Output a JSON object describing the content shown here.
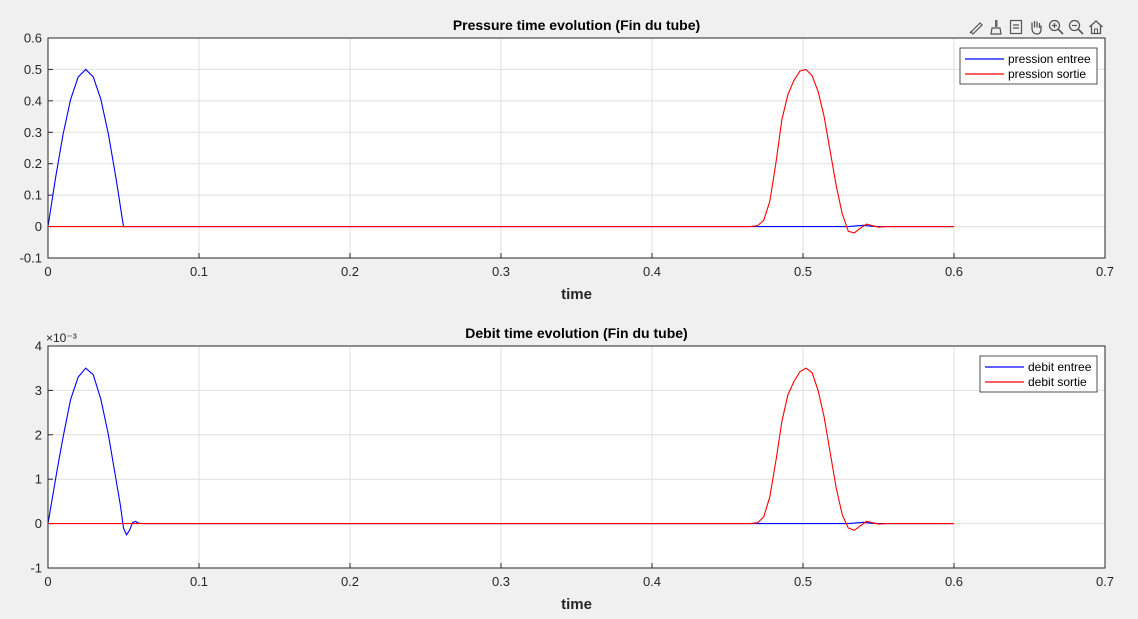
{
  "toolbar": {
    "icons": [
      "data-tips-icon",
      "brush-icon",
      "restore-view-icon",
      "pan-hand-icon",
      "zoom-in-icon",
      "zoom-out-icon",
      "home-icon"
    ]
  },
  "colors": {
    "background": "#f0f0f0",
    "axes_background": "#ffffff",
    "grid": "#dfdfdf",
    "series_inlet": "#0000ff",
    "series_outlet": "#ff0000"
  },
  "chart_data": [
    {
      "type": "line",
      "title": "Pressure time evolution (Fin du tube)",
      "xlabel": "time",
      "ylabel": "",
      "xlim": [
        0,
        0.7
      ],
      "ylim": [
        -0.1,
        0.6
      ],
      "x_ticks": [
        "0",
        "0.1",
        "0.2",
        "0.3",
        "0.4",
        "0.5",
        "0.6",
        "0.7"
      ],
      "y_ticks": [
        "-0.1",
        "0",
        "0.1",
        "0.2",
        "0.3",
        "0.4",
        "0.5",
        "0.6"
      ],
      "exponent_label": "",
      "grid": true,
      "legend_position": "top-right",
      "series": [
        {
          "name": "pression entree",
          "color": "#0000ff",
          "x": [
            0,
            0.005,
            0.01,
            0.015,
            0.02,
            0.025,
            0.03,
            0.035,
            0.04,
            0.045,
            0.05,
            0.0501,
            0.1,
            0.2,
            0.3,
            0.4,
            0.47,
            0.5,
            0.53,
            0.54,
            0.545,
            0.55,
            0.555,
            0.6
          ],
          "y": [
            0,
            0.155,
            0.294,
            0.405,
            0.476,
            0.5,
            0.476,
            0.405,
            0.294,
            0.155,
            0,
            0,
            0,
            0,
            0,
            0,
            0,
            0,
            0,
            0.004,
            0.001,
            0,
            0,
            0
          ]
        },
        {
          "name": "pression sortie",
          "color": "#ff0000",
          "x": [
            0,
            0.1,
            0.2,
            0.3,
            0.4,
            0.465,
            0.47,
            0.474,
            0.478,
            0.482,
            0.486,
            0.49,
            0.494,
            0.498,
            0.502,
            0.506,
            0.51,
            0.514,
            0.518,
            0.522,
            0.526,
            0.53,
            0.534,
            0.538,
            0.542,
            0.546,
            0.55,
            0.555,
            0.6
          ],
          "y": [
            0,
            0,
            0,
            0,
            0,
            0,
            0.003,
            0.02,
            0.08,
            0.2,
            0.34,
            0.42,
            0.465,
            0.495,
            0.5,
            0.48,
            0.43,
            0.35,
            0.24,
            0.13,
            0.04,
            -0.015,
            -0.02,
            -0.005,
            0.008,
            0.003,
            -0.002,
            0,
            0
          ]
        }
      ]
    },
    {
      "type": "line",
      "title": "Debit time evolution (Fin du tube)",
      "xlabel": "time",
      "ylabel": "",
      "xlim": [
        0,
        0.7
      ],
      "ylim": [
        -1,
        4
      ],
      "x_ticks": [
        "0",
        "0.1",
        "0.2",
        "0.3",
        "0.4",
        "0.5",
        "0.6",
        "0.7"
      ],
      "y_ticks": [
        "-1",
        "0",
        "1",
        "2",
        "3",
        "4"
      ],
      "exponent_label": "×10⁻³",
      "grid": true,
      "legend_position": "top-right",
      "series": [
        {
          "name": "debit entree",
          "color": "#0000ff",
          "x": [
            0,
            0.003,
            0.006,
            0.01,
            0.015,
            0.02,
            0.025,
            0.03,
            0.035,
            0.04,
            0.045,
            0.048,
            0.05,
            0.052,
            0.054,
            0.056,
            0.058,
            0.06,
            0.063,
            0.1,
            0.2,
            0.3,
            0.4,
            0.47,
            0.5,
            0.53,
            0.54,
            0.545,
            0.55,
            0.555,
            0.6
          ],
          "y": [
            0,
            0.6,
            1.2,
            1.95,
            2.8,
            3.3,
            3.5,
            3.35,
            2.8,
            2.0,
            1.0,
            0.4,
            -0.1,
            -0.25,
            -0.15,
            0.02,
            0.05,
            0.01,
            0,
            0,
            0,
            0,
            0,
            0,
            0,
            0,
            0.03,
            0.01,
            0,
            0,
            0
          ]
        },
        {
          "name": "debit sortie",
          "color": "#ff0000",
          "x": [
            0,
            0.1,
            0.2,
            0.3,
            0.4,
            0.465,
            0.47,
            0.474,
            0.478,
            0.482,
            0.486,
            0.49,
            0.494,
            0.498,
            0.502,
            0.506,
            0.51,
            0.514,
            0.518,
            0.522,
            0.526,
            0.53,
            0.534,
            0.538,
            0.542,
            0.546,
            0.55,
            0.555,
            0.6
          ],
          "y": [
            0,
            0,
            0,
            0,
            0,
            0,
            0.02,
            0.15,
            0.6,
            1.4,
            2.3,
            2.9,
            3.2,
            3.42,
            3.5,
            3.4,
            3.0,
            2.4,
            1.6,
            0.8,
            0.2,
            -0.1,
            -0.15,
            -0.05,
            0.05,
            0.02,
            -0.01,
            0,
            0
          ]
        }
      ]
    }
  ]
}
